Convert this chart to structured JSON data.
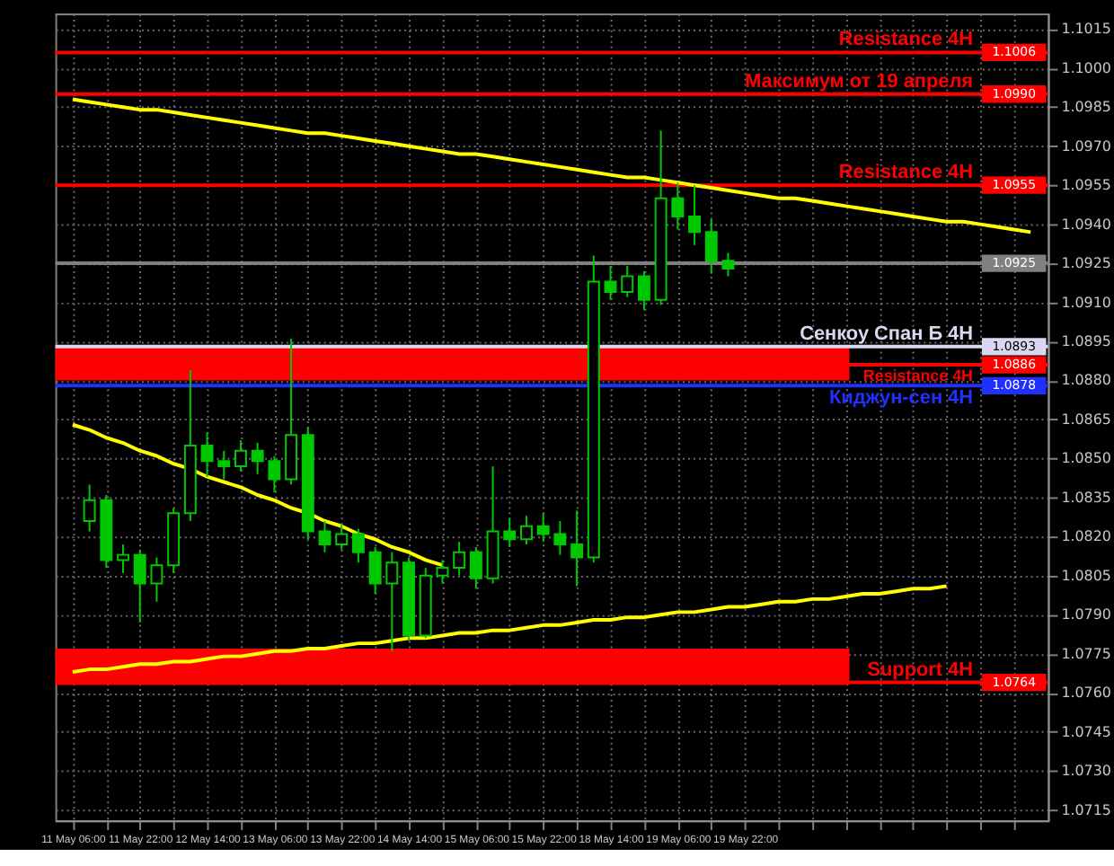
{
  "chart_data": {
    "type": "candlestick",
    "color": "#00c800",
    "ylim": [
      1.0711,
      1.1021
    ],
    "grid": true,
    "categories": [
      "11 May 06:00",
      null,
      null,
      null,
      "11 May 22:00",
      null,
      null,
      null,
      "12 May 14:00",
      null,
      null,
      null,
      "13 May 06:00",
      null,
      null,
      null,
      "13 May 22:00",
      null,
      null,
      null,
      "14 May 14:00",
      null,
      null,
      null,
      "15 May 06:00",
      null,
      null,
      null,
      "15 May 22:00",
      null,
      null,
      null,
      "18 May 14:00",
      null,
      null,
      null,
      "19 May 06:00",
      null,
      null,
      null,
      "19 May 22:00",
      null,
      null,
      null,
      null,
      null,
      null,
      null,
      null,
      null,
      null,
      null,
      null,
      null,
      null,
      null,
      null,
      null
    ],
    "ohlc": [
      null,
      [
        1.0826,
        1.084,
        1.0822,
        1.0834
      ],
      [
        1.0834,
        1.0836,
        1.0808,
        1.0811
      ],
      [
        1.0811,
        1.0817,
        1.0806,
        1.0813
      ],
      [
        1.0813,
        1.0815,
        1.0787,
        1.0802
      ],
      [
        1.0802,
        1.0812,
        1.0795,
        1.0809
      ],
      [
        1.0809,
        1.0831,
        1.0806,
        1.0829
      ],
      [
        1.0829,
        1.0884,
        1.0826,
        1.0855
      ],
      [
        1.0855,
        1.086,
        1.0843,
        1.0849
      ],
      [
        1.0849,
        1.0853,
        1.0842,
        1.0847
      ],
      [
        1.0847,
        1.0857,
        1.0845,
        1.0853
      ],
      [
        1.0853,
        1.0856,
        1.0844,
        1.0849
      ],
      [
        1.0849,
        1.0851,
        1.0837,
        1.0842
      ],
      [
        1.0842,
        1.0896,
        1.084,
        1.0859
      ],
      [
        1.0859,
        1.0862,
        1.0819,
        1.0822
      ],
      [
        1.0822,
        1.0826,
        1.0814,
        1.0817
      ],
      [
        1.0817,
        1.0825,
        1.0815,
        1.0821
      ],
      [
        1.0821,
        1.0823,
        1.081,
        1.0814
      ],
      [
        1.0814,
        1.0816,
        1.0798,
        1.0802
      ],
      [
        1.0802,
        1.0814,
        1.0776,
        1.081
      ],
      [
        1.081,
        1.0812,
        1.078,
        1.0782
      ],
      [
        1.0782,
        1.0808,
        1.0781,
        1.0805
      ],
      [
        1.0805,
        1.0811,
        1.0802,
        1.0808
      ],
      [
        1.0808,
        1.0818,
        1.0805,
        1.0814
      ],
      [
        1.0814,
        1.0816,
        1.08,
        1.0804
      ],
      [
        1.0804,
        1.0847,
        1.0802,
        1.0822
      ],
      [
        1.0822,
        1.0827,
        1.0816,
        1.0819
      ],
      [
        1.0819,
        1.0828,
        1.0817,
        1.0824
      ],
      [
        1.0824,
        1.0829,
        1.0818,
        1.0821
      ],
      [
        1.0821,
        1.0826,
        1.0813,
        1.0817
      ],
      [
        1.0817,
        1.083,
        1.0801,
        1.0812
      ],
      [
        1.0812,
        1.0928,
        1.081,
        1.0918
      ],
      [
        1.0918,
        1.0924,
        1.0911,
        1.0914
      ],
      [
        1.0914,
        1.0924,
        1.0912,
        1.092
      ],
      [
        1.092,
        1.0922,
        1.0907,
        1.0911
      ],
      [
        1.0911,
        1.0976,
        1.0909,
        1.095
      ],
      [
        1.095,
        1.0956,
        1.0938,
        1.0943
      ],
      [
        1.0943,
        1.0955,
        1.0932,
        1.0937
      ],
      [
        1.0937,
        1.0942,
        1.0921,
        1.0926
      ],
      [
        1.0926,
        1.0929,
        1.092,
        1.0923
      ],
      null,
      null,
      null,
      null,
      null,
      null,
      null,
      null,
      null,
      null,
      null,
      null,
      null,
      null,
      null,
      null,
      null,
      null
    ],
    "series": [
      {
        "type": "line",
        "color": "#ffff00",
        "values": [
          1.0988,
          1.0987,
          1.0986,
          1.0985,
          1.0984,
          1.0984,
          1.0983,
          1.0982,
          1.0981,
          1.098,
          1.0979,
          1.0978,
          1.0977,
          1.0976,
          1.0975,
          1.0975,
          1.0974,
          1.0973,
          1.0972,
          1.0971,
          1.097,
          1.0969,
          1.0968,
          1.0967,
          1.0967,
          1.0966,
          1.0965,
          1.0964,
          1.0963,
          1.0962,
          1.0961,
          1.096,
          1.0959,
          1.0958,
          1.0958,
          1.0957,
          1.0956,
          1.0955,
          1.0954,
          1.0953,
          1.0952,
          1.0951,
          1.095,
          1.095,
          1.0949,
          1.0948,
          1.0947,
          1.0946,
          1.0945,
          1.0944,
          1.0943,
          1.0942,
          1.0941,
          1.0941,
          1.094,
          1.0939,
          1.0938,
          1.0937
        ]
      },
      {
        "type": "line",
        "color": "#ffff00",
        "values": [
          1.0863,
          1.0861,
          1.0858,
          1.0856,
          1.0853,
          1.0851,
          1.0848,
          1.0846,
          1.0843,
          1.0841,
          1.0839,
          1.0836,
          1.0834,
          1.0831,
          1.0829,
          1.0826,
          1.0824,
          1.0821,
          1.0819,
          1.0816,
          1.0814,
          1.0811,
          1.0809,
          null,
          null,
          null,
          null,
          null,
          null,
          null,
          null,
          null,
          null,
          null,
          null,
          null,
          null,
          null,
          null,
          null,
          null,
          null,
          null,
          null,
          null,
          null,
          null,
          null,
          null,
          null,
          null,
          null,
          null,
          null,
          null,
          null,
          null,
          null
        ]
      },
      {
        "type": "line",
        "color": "#ffff00",
        "values": [
          1.0768,
          1.0769,
          1.0769,
          1.077,
          1.0771,
          1.0771,
          1.0772,
          1.0772,
          1.0773,
          1.0774,
          1.0774,
          1.0775,
          1.0776,
          1.0776,
          1.0777,
          1.0777,
          1.0778,
          1.0779,
          1.0779,
          1.078,
          1.0781,
          1.0781,
          1.0782,
          1.0783,
          1.0783,
          1.0784,
          1.0784,
          1.0785,
          1.0786,
          1.0786,
          1.0787,
          1.0788,
          1.0788,
          1.0789,
          1.0789,
          1.079,
          1.0791,
          1.0791,
          1.0792,
          1.0793,
          1.0793,
          1.0794,
          1.0795,
          1.0795,
          1.0796,
          1.0796,
          1.0797,
          1.0798,
          1.0798,
          1.0799,
          1.08,
          1.08,
          1.0801,
          null,
          null,
          null,
          null,
          null
        ]
      }
    ],
    "yticks": [
      {
        "value": 1.0715,
        "label": "1.0715"
      },
      {
        "value": 1.073,
        "label": "1.0730"
      },
      {
        "value": 1.0745,
        "label": "1.0745"
      },
      {
        "value": 1.076,
        "label": "1.0760"
      },
      {
        "value": 1.0775,
        "label": "1.0775"
      },
      {
        "value": 1.079,
        "label": "1.0790"
      },
      {
        "value": 1.0805,
        "label": "1.0805"
      },
      {
        "value": 1.082,
        "label": "1.0820"
      },
      {
        "value": 1.0835,
        "label": "1.0835"
      },
      {
        "value": 1.085,
        "label": "1.0850"
      },
      {
        "value": 1.0865,
        "label": "1.0865"
      },
      {
        "value": 1.088,
        "label": "1.0880"
      },
      {
        "value": 1.0895,
        "label": "1.0895"
      },
      {
        "value": 1.091,
        "label": "1.0910"
      },
      {
        "value": 1.0925,
        "label": "1.0925"
      },
      {
        "value": 1.094,
        "label": "1.0940"
      },
      {
        "value": 1.0955,
        "label": "1.0955"
      },
      {
        "value": 1.097,
        "label": "1.0970"
      },
      {
        "value": 1.0985,
        "label": "1.0985"
      },
      {
        "value": 1.1,
        "label": "1.1000"
      },
      {
        "value": 1.1015,
        "label": "1.1015"
      }
    ],
    "bands": [
      {
        "axis": "y",
        "from": 1.088,
        "to": 1.0893,
        "color": "#ff0000"
      },
      {
        "axis": "y",
        "from": 1.0763,
        "to": 1.0777,
        "color": "#ff0000"
      }
    ],
    "ref_lines": [
      {
        "axis": "y",
        "value": 1.1006,
        "label": "Resistance 4H",
        "color": "#ff0000"
      },
      {
        "axis": "y",
        "value": 1.099,
        "label": "Максимум от 19 апреля",
        "color": "#ff0000"
      },
      {
        "axis": "y",
        "value": 1.0955,
        "label": "Resistance 4H",
        "color": "#ff0000"
      },
      {
        "axis": "y",
        "value": 1.0925,
        "label": null,
        "color": "#808080"
      },
      {
        "axis": "y",
        "value": 1.0893,
        "label": "Сенкоу Спан Б 4H",
        "color": "#d8d8f0"
      },
      {
        "axis": "y",
        "value": 1.0886,
        "label": "Resistance 4H",
        "color": "#ff0000"
      },
      {
        "axis": "y",
        "value": 1.0878,
        "label": "Киджун-сен 4H",
        "color": "#2030ff"
      },
      {
        "axis": "y",
        "value": 1.0764,
        "label": "Support 4H",
        "color": "#ff0000"
      }
    ],
    "annotations": [
      {
        "text": "1.1006",
        "y": 1.1006
      },
      {
        "text": "1.0990",
        "y": 1.099
      },
      {
        "text": "1.0955",
        "y": 1.0955
      },
      {
        "text": "1.0925",
        "y": 1.0925
      },
      {
        "text": "1.0893",
        "y": 1.0893
      },
      {
        "text": "1.0886",
        "y": 1.0886
      },
      {
        "text": "1.0878",
        "y": 1.0878
      },
      {
        "text": "1.0764",
        "y": 1.0764
      }
    ]
  }
}
